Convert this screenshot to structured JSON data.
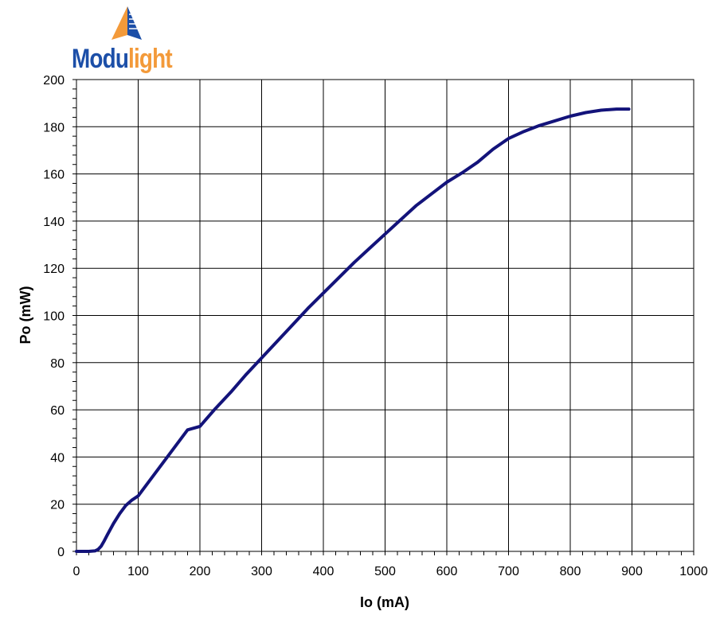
{
  "logo": {
    "part1": "Modu",
    "part2": "light",
    "colors": {
      "blue": "#1c4fa8",
      "orange": "#f39a3a"
    }
  },
  "chart_data": {
    "type": "line",
    "title": "",
    "xlabel": "Io (mA)",
    "ylabel": "Po (mW)",
    "xlim": [
      0,
      1000
    ],
    "ylim": [
      0,
      200
    ],
    "x_ticks": [
      0,
      100,
      200,
      300,
      400,
      500,
      600,
      700,
      800,
      900,
      1000
    ],
    "y_ticks": [
      0,
      20,
      40,
      60,
      80,
      100,
      120,
      140,
      160,
      180,
      200
    ],
    "grid": true,
    "line_color": "#13137a",
    "series": [
      {
        "x": [
          0,
          10,
          20,
          30,
          35,
          40,
          45,
          50,
          60,
          70,
          80,
          90,
          100,
          120,
          140,
          160,
          180,
          200,
          225,
          250,
          275,
          300,
          325,
          350,
          375,
          400,
          425,
          450,
          475,
          500,
          525,
          550,
          575,
          600,
          625,
          650,
          675,
          700,
          725,
          750,
          775,
          800,
          825,
          850,
          875,
          895
        ],
        "y": [
          0,
          0,
          0,
          0.2,
          0.8,
          2.2,
          4.5,
          7,
          11.8,
          16,
          19.5,
          21.8,
          23.5,
          30.5,
          37.5,
          44.5,
          51.5,
          53,
          60.5,
          67.5,
          75,
          82,
          89,
          96,
          103,
          109.5,
          116,
          122.5,
          128.5,
          134.5,
          140.5,
          146.5,
          151.5,
          156.5,
          160.5,
          165,
          170.5,
          175,
          178,
          180.5,
          182.5,
          184.5,
          186,
          187,
          187.5,
          187.5
        ]
      }
    ]
  }
}
